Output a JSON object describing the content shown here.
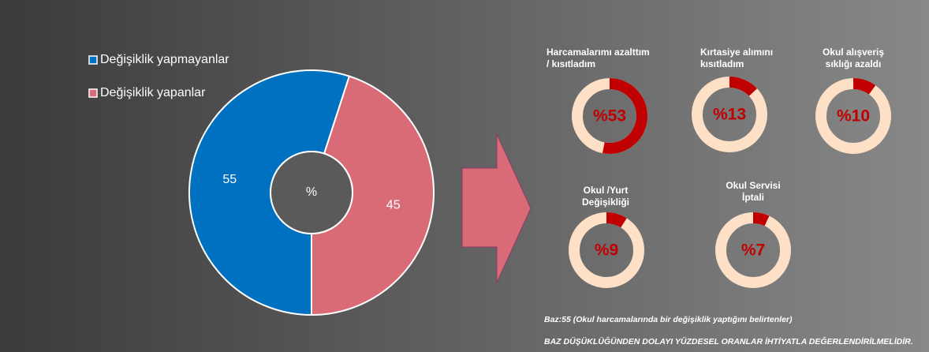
{
  "chart_data": [
    {
      "type": "donut",
      "categories": [
        "Değişiklik yapmayanlar",
        "Değişiklik yapanlar"
      ],
      "values": [
        55,
        45
      ],
      "colors": [
        "#0070c0",
        "#d96b77"
      ],
      "center_label": "%"
    },
    {
      "type": "gauge",
      "title": [
        "Harcamalarımı azalttım",
        "/ kısıtladım"
      ],
      "values": [
        53
      ],
      "value_labels": [
        "%53"
      ],
      "color": "#c00000"
    },
    {
      "type": "gauge",
      "title": [
        "Kırtasiye alımını",
        "kısıtladım"
      ],
      "values": [
        13
      ],
      "value_labels": [
        "%13"
      ],
      "color": "#c00000"
    },
    {
      "type": "gauge",
      "title": [
        "Okul alışveriş",
        "sıklığı azaldı"
      ],
      "values": [
        10
      ],
      "value_labels": [
        "%10"
      ],
      "color": "#c00000"
    },
    {
      "type": "gauge",
      "title": [
        "Okul /Yurt",
        "Değişikliği"
      ],
      "values": [
        9
      ],
      "value_labels": [
        "%9"
      ],
      "color": "#c00000"
    },
    {
      "type": "gauge",
      "title": [
        "Okul Servisi",
        "İptali"
      ],
      "values": [
        7
      ],
      "value_labels": [
        "%7"
      ],
      "color": "#c00000"
    }
  ],
  "footnotes": [
    "Baz:55 (Okul harcamalarında bir değişiklik yaptığını belirtenler)",
    "BAZ DÜŞÜKLÜĞÜNDEN DOLAYI YÜZDESEL ORANLAR İHTİYATLA DEĞERLENDİRİLMELİDİR."
  ]
}
